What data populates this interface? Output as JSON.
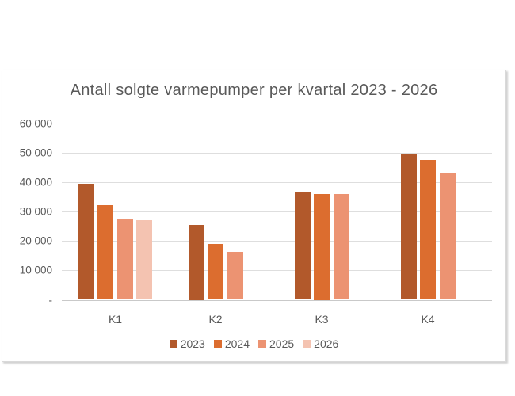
{
  "window": {
    "background": "#FFFFFF"
  },
  "chart_data": {
    "type": "bar",
    "title": "Antall solgte varmepumper per kvartal 2023 - 2026",
    "categories": [
      "K1",
      "K2",
      "K3",
      "K4"
    ],
    "series": [
      {
        "name": "2023",
        "color": "#B2592B",
        "values": [
          39400,
          25500,
          36500,
          49600
        ]
      },
      {
        "name": "2024",
        "color": "#DC6D2F",
        "values": [
          32200,
          18900,
          36000,
          47600
        ]
      },
      {
        "name": "2025",
        "color": "#EC9372",
        "values": [
          27500,
          16200,
          36100,
          42900
        ]
      },
      {
        "name": "2026",
        "color": "#F4C3B1",
        "values": [
          27100,
          null,
          null,
          null
        ]
      }
    ],
    "xlabel": "",
    "ylabel": "",
    "ylim": [
      0,
      60000
    ],
    "ytick_step": 10000,
    "ytick_labels": [
      "-",
      "10 000",
      "20 000",
      "30 000",
      "40 000",
      "50 000",
      "60 000"
    ],
    "grid": true,
    "legend_position": "bottom",
    "colors": {
      "text": "#595959",
      "gridline": "#DEDEDE",
      "axis_line": "#C9C9C9",
      "frame_border": "#D9D9D9"
    }
  }
}
